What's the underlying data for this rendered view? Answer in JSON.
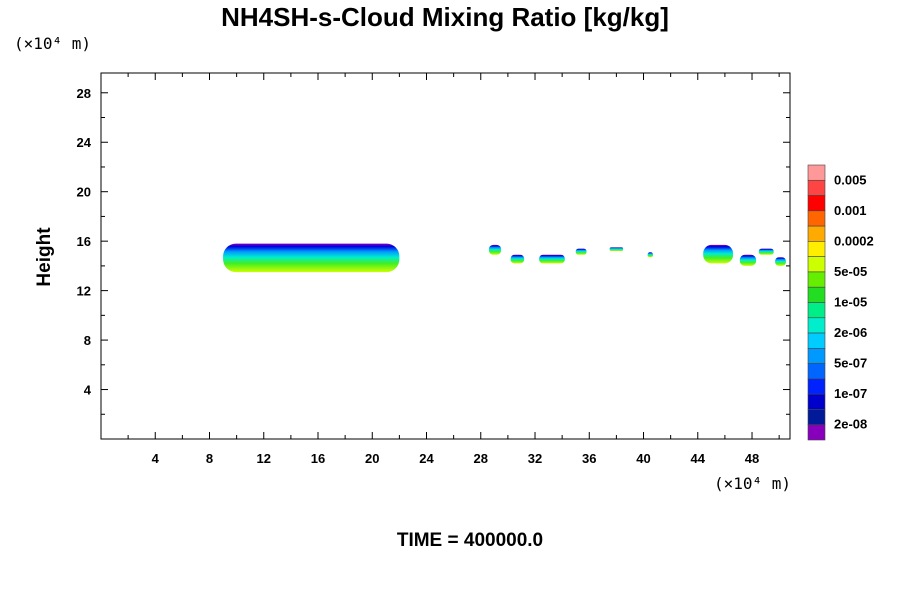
{
  "chart_data": {
    "type": "heatmap",
    "title": "NH4SH-s-Cloud Mixing Ratio [kg/kg]",
    "ylabel": "Height",
    "xlabel": "",
    "x_unit": "(×10⁴ m)",
    "y_unit": "(×10⁴ m)",
    "xlim": [
      0,
      50.8
    ],
    "ylim": [
      0,
      29.6
    ],
    "x_ticks": [
      4,
      8,
      12,
      16,
      20,
      24,
      28,
      32,
      36,
      40,
      44,
      48
    ],
    "y_ticks": [
      4,
      8,
      12,
      16,
      20,
      24,
      28
    ],
    "colorbar": {
      "labels": [
        "0.005",
        "0.001",
        "0.0002",
        "5e-05",
        "1e-05",
        "2e-06",
        "5e-07",
        "1e-07",
        "2e-08"
      ],
      "colors": [
        "#ff9999",
        "#ff4444",
        "#ff0000",
        "#ff6600",
        "#ffaa00",
        "#ffee00",
        "#ccff00",
        "#66ee00",
        "#22dd22",
        "#00ee88",
        "#00eecc",
        "#00ccff",
        "#0099ff",
        "#0066ff",
        "#0022ff",
        "#0000cc",
        "#001a99",
        "#8800bb"
      ]
    },
    "cloud_regions": [
      {
        "x": [
          9.0,
          22.0
        ],
        "y": [
          13.5,
          15.8
        ]
      },
      {
        "x": [
          28.6,
          29.5
        ],
        "y": [
          14.9,
          15.7
        ]
      },
      {
        "x": [
          30.2,
          31.2
        ],
        "y": [
          14.2,
          14.9
        ]
      },
      {
        "x": [
          32.3,
          34.2
        ],
        "y": [
          14.2,
          14.9
        ]
      },
      {
        "x": [
          35.0,
          35.8
        ],
        "y": [
          14.9,
          15.4
        ]
      },
      {
        "x": [
          37.5,
          38.5
        ],
        "y": [
          15.2,
          15.5
        ]
      },
      {
        "x": [
          40.3,
          40.7
        ],
        "y": [
          14.7,
          15.1
        ]
      },
      {
        "x": [
          44.4,
          46.6
        ],
        "y": [
          14.2,
          15.7
        ]
      },
      {
        "x": [
          47.1,
          48.3
        ],
        "y": [
          14.0,
          14.9
        ]
      },
      {
        "x": [
          48.5,
          49.6
        ],
        "y": [
          14.9,
          15.4
        ]
      },
      {
        "x": [
          49.7,
          50.5
        ],
        "y": [
          14.0,
          14.7
        ]
      }
    ]
  },
  "footer": {
    "time_label": "TIME = 400000.0"
  }
}
